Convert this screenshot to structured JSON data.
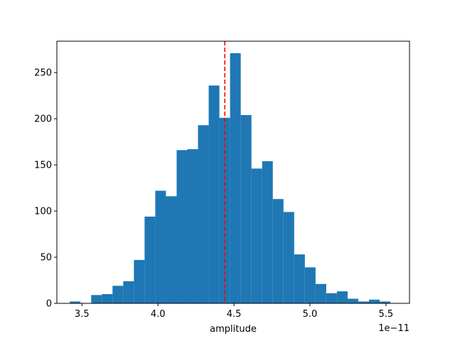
{
  "chart_data": {
    "type": "bar",
    "bin_width": 0.0703,
    "bin_start": 3.42,
    "values": [
      2,
      0,
      9,
      10,
      19,
      24,
      47,
      94,
      122,
      116,
      166,
      167,
      193,
      236,
      201,
      271,
      204,
      146,
      154,
      113,
      99,
      53,
      39,
      21,
      11,
      13,
      5,
      2,
      4,
      2
    ],
    "xlabel": "amplitude",
    "ylabel": "",
    "title": "",
    "x_scale_label": "1e−11",
    "xlim": [
      3.335,
      5.655
    ],
    "ylim": [
      0,
      284
    ],
    "xticks": [
      {
        "value": 3.5,
        "label": "3.5"
      },
      {
        "value": 4.0,
        "label": "4.0"
      },
      {
        "value": 4.5,
        "label": "4.5"
      },
      {
        "value": 5.0,
        "label": "5.0"
      },
      {
        "value": 5.5,
        "label": "5.5"
      }
    ],
    "yticks": [
      {
        "value": 0,
        "label": "0"
      },
      {
        "value": 50,
        "label": "50"
      },
      {
        "value": 100,
        "label": "100"
      },
      {
        "value": 150,
        "label": "150"
      },
      {
        "value": 200,
        "label": "200"
      },
      {
        "value": 250,
        "label": "250"
      }
    ],
    "vline": {
      "x": 4.44,
      "style": "dashed",
      "color": "#ff0000"
    },
    "bar_color": "#1f77b4",
    "grid": false
  }
}
